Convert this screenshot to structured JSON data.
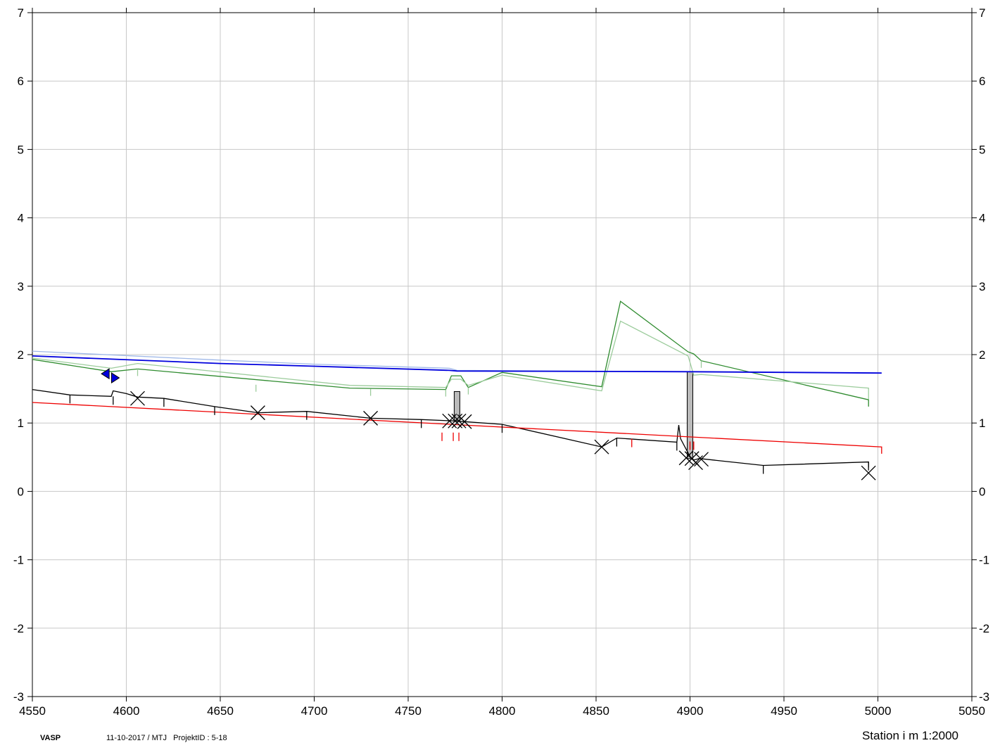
{
  "chart_data": {
    "type": "line",
    "title": "",
    "xlabel": "Station i m 1:2000",
    "ylabel": "",
    "xlim": [
      4550,
      5050
    ],
    "ylim": [
      -3,
      7
    ],
    "x_ticks": [
      4550,
      4600,
      4650,
      4700,
      4750,
      4800,
      4850,
      4900,
      4950,
      5000,
      5050
    ],
    "y_ticks": [
      -3,
      -2,
      -1,
      0,
      1,
      2,
      3,
      4,
      5,
      6,
      7
    ],
    "y_ticks_right": true,
    "grid": true,
    "colors": {
      "terrain_green": "#2e8b2e",
      "terrain_lightgreen": "#9ccc9c",
      "water_blue": "#0000dd",
      "water_lightblue": "#9fb8e8",
      "pipe_black": "#000000",
      "invert_red": "#ee0000",
      "well_gray": "#bbbbbb",
      "marker_blue": "#0000dd"
    },
    "series": [
      {
        "key": "terrain_green",
        "x": [
          4550,
          4592,
          4606,
          4719,
          4770,
          4773,
          4778,
          4782,
          4800,
          4853,
          4863,
          4899,
          4902,
          4906,
          4995,
          4995
        ],
        "y": [
          1.93,
          1.75,
          1.79,
          1.51,
          1.49,
          1.69,
          1.69,
          1.52,
          1.74,
          1.53,
          2.78,
          2.04,
          2.01,
          1.91,
          1.34,
          1.24
        ]
      },
      {
        "key": "terrain_lightgreen",
        "x": [
          4550,
          4592,
          4606,
          4719,
          4770,
          4773,
          4778,
          4782,
          4800,
          4853,
          4863,
          4899,
          4902,
          4906,
          4995,
          4995
        ],
        "y": [
          1.95,
          1.8,
          1.87,
          1.55,
          1.52,
          1.64,
          1.64,
          1.55,
          1.7,
          1.47,
          2.49,
          1.98,
          1.7,
          1.71,
          1.51,
          1.35
        ]
      },
      {
        "key": "water_lightblue",
        "x": [
          4550,
          4650,
          4700,
          4772,
          4776,
          4900,
          5002
        ],
        "y": [
          2.05,
          1.92,
          1.86,
          1.8,
          1.77,
          1.75,
          1.73
        ]
      },
      {
        "key": "water_blue",
        "x": [
          4550,
          4650,
          4700,
          4772,
          4776,
          4900,
          5002
        ],
        "y": [
          1.98,
          1.87,
          1.83,
          1.77,
          1.76,
          1.75,
          1.73
        ]
      },
      {
        "key": "pipe_black",
        "x": [
          4550,
          4570,
          4592,
          4593,
          4600,
          4606,
          4620,
          4647,
          4670,
          4696,
          4730,
          4757,
          4775,
          4800,
          4853,
          4861,
          4893,
          4894,
          4895,
          4900,
          4902,
          4905,
          4939,
          4995,
          4995
        ],
        "y": [
          1.49,
          1.41,
          1.39,
          1.47,
          1.43,
          1.38,
          1.36,
          1.24,
          1.15,
          1.17,
          1.07,
          1.05,
          1.03,
          0.98,
          0.65,
          0.78,
          0.72,
          0.97,
          0.77,
          0.51,
          0.46,
          0.48,
          0.38,
          0.43,
          0.35
        ]
      },
      {
        "key": "invert_red",
        "x": [
          4550,
          5002,
          5002
        ],
        "y": [
          1.3,
          0.65,
          0.55
        ]
      }
    ],
    "ticks_black": [
      [
        4570,
        1.41
      ],
      [
        4593,
        1.39
      ],
      [
        4620,
        1.36
      ],
      [
        4647,
        1.24
      ],
      [
        4696,
        1.17
      ],
      [
        4757,
        1.05
      ],
      [
        4800,
        0.98
      ],
      [
        4861,
        0.78
      ],
      [
        4893,
        0.72
      ],
      [
        4939,
        0.38
      ],
      [
        4995,
        0.43
      ]
    ],
    "ticks_green": [
      [
        4606,
        1.79
      ],
      [
        4669,
        1.56
      ],
      [
        4730,
        1.5
      ],
      [
        4770,
        1.49
      ],
      [
        4782,
        1.52
      ],
      [
        4906,
        1.91
      ]
    ],
    "ticks_red": [
      [
        4768,
        0.86
      ],
      [
        4774,
        0.86
      ],
      [
        4777,
        0.86
      ],
      [
        4869,
        0.77
      ],
      [
        4900,
        0.73
      ],
      [
        4902,
        0.73
      ]
    ],
    "markers_x": [
      [
        4606,
        1.36
      ],
      [
        4670,
        1.15
      ],
      [
        4730,
        1.07
      ],
      [
        4772,
        1.03
      ],
      [
        4775,
        1.03
      ],
      [
        4777,
        1.03
      ],
      [
        4780,
        1.02
      ],
      [
        4853,
        0.65
      ],
      [
        4898,
        0.49
      ],
      [
        4901,
        0.48
      ],
      [
        4903,
        0.42
      ],
      [
        4906,
        0.47
      ],
      [
        4995,
        0.27
      ]
    ],
    "wells": [
      {
        "x": 4776,
        "top": 1.46,
        "bottom": 1.03
      },
      {
        "x": 4900,
        "top": 1.75,
        "bottom": 0.48
      }
    ],
    "blue_markers": [
      {
        "x": 4589,
        "y": 1.72,
        "dir": "left"
      },
      {
        "x": 4594,
        "y": 1.66,
        "dir": "right"
      }
    ]
  },
  "footer": {
    "program": "VASP",
    "meta": "11-10-2017 / MTJ   ProjektID : 5-18"
  }
}
